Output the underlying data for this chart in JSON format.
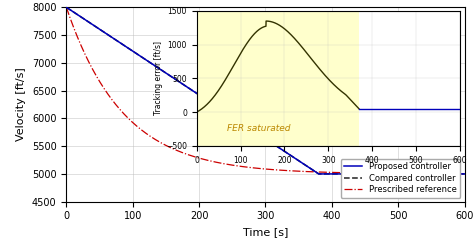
{
  "main": {
    "xlim": [
      0,
      600
    ],
    "ylim": [
      4500,
      8000
    ],
    "xlabel": "Time [s]",
    "ylabel": "Velocity [ft/s]",
    "xticks": [
      0,
      100,
      200,
      300,
      400,
      500,
      600
    ],
    "yticks": [
      4500,
      5000,
      5500,
      6000,
      6500,
      7000,
      7500,
      8000
    ],
    "bg_color": "#ffffff"
  },
  "inset": {
    "xlim": [
      0,
      600
    ],
    "ylim": [
      -500,
      1500
    ],
    "ylabel": "Tracking error [ft/s]",
    "xticks": [
      0,
      100,
      200,
      300,
      400,
      500,
      600
    ],
    "yticks": [
      -500,
      0,
      500,
      1000,
      1500
    ],
    "bg_color": "#ffffcc",
    "fer_label": "FER saturated",
    "yellow_end": 370
  },
  "curves": {
    "proposed_color": "#0000bb",
    "compared_color": "#222222",
    "ref_color": "#cc0000",
    "inset_curve_color": "#333300",
    "inset_flat_color": "#0000bb"
  },
  "legend": [
    {
      "label": "Proposed controller",
      "color": "#0000bb",
      "linestyle": "-"
    },
    {
      "label": "Compared controller",
      "color": "#222222",
      "linestyle": "--"
    },
    {
      "label": "Prescribed reference",
      "color": "#cc0000",
      "linestyle": "-."
    }
  ]
}
